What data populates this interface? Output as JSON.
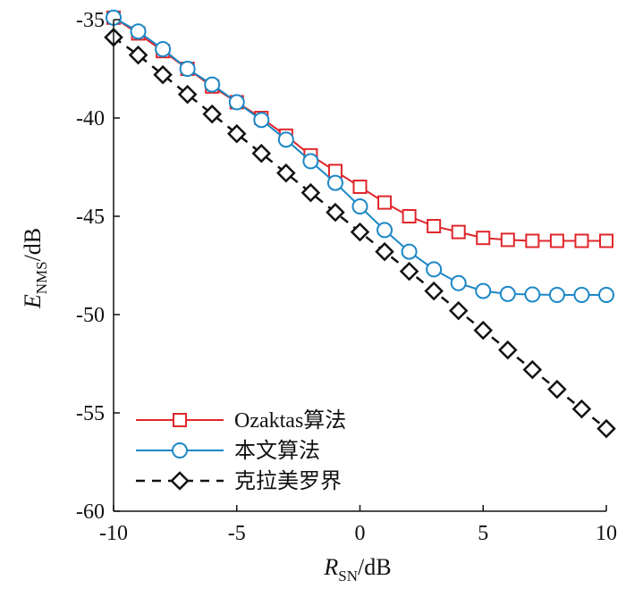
{
  "chart_data": {
    "type": "line",
    "xlabel": {
      "main": "R",
      "sub": "SN",
      "unit": "/dB"
    },
    "ylabel": {
      "main": "E",
      "sub": "NMS",
      "unit": "/dB"
    },
    "xlim": [
      -10,
      10
    ],
    "ylim": [
      -60,
      -35
    ],
    "xticks": [
      -10,
      -5,
      0,
      5,
      10
    ],
    "yticks": [
      -35,
      -40,
      -45,
      -50,
      -55,
      -60
    ],
    "grid": false,
    "legend_position": "bottom-left",
    "x": [
      -10,
      -9,
      -8,
      -7,
      -6,
      -5,
      -4,
      -3,
      -2,
      -1,
      0,
      1,
      2,
      3,
      4,
      5,
      6,
      7,
      8,
      9,
      10
    ],
    "series": [
      {
        "name": "Ozaktas算法",
        "color": "#e0262b",
        "marker": "square",
        "dash": "solid",
        "values": [
          -34.9,
          -35.7,
          -36.6,
          -37.5,
          -38.4,
          -39.2,
          -40.0,
          -40.9,
          -41.9,
          -42.7,
          -43.5,
          -44.3,
          -45.0,
          -45.5,
          -45.8,
          -46.1,
          -46.2,
          -46.25,
          -46.25,
          -46.25,
          -46.25
        ]
      },
      {
        "name": "本文算法",
        "color": "#1b87c6",
        "marker": "circle",
        "dash": "solid",
        "values": [
          -34.9,
          -35.6,
          -36.5,
          -37.5,
          -38.3,
          -39.2,
          -40.1,
          -41.1,
          -42.2,
          -43.3,
          -44.5,
          -45.7,
          -46.8,
          -47.7,
          -48.4,
          -48.8,
          -48.95,
          -48.98,
          -49.0,
          -49.0,
          -49.0
        ]
      },
      {
        "name": "克拉美罗界",
        "color": "#111111",
        "marker": "diamond",
        "dash": "dashed",
        "values": [
          -35.9,
          -36.8,
          -37.8,
          -38.8,
          -39.8,
          -40.8,
          -41.8,
          -42.8,
          -43.8,
          -44.8,
          -45.8,
          -46.8,
          -47.8,
          -48.8,
          -49.8,
          -50.8,
          -51.8,
          -52.8,
          -53.8,
          -54.8,
          -55.8
        ]
      }
    ]
  }
}
